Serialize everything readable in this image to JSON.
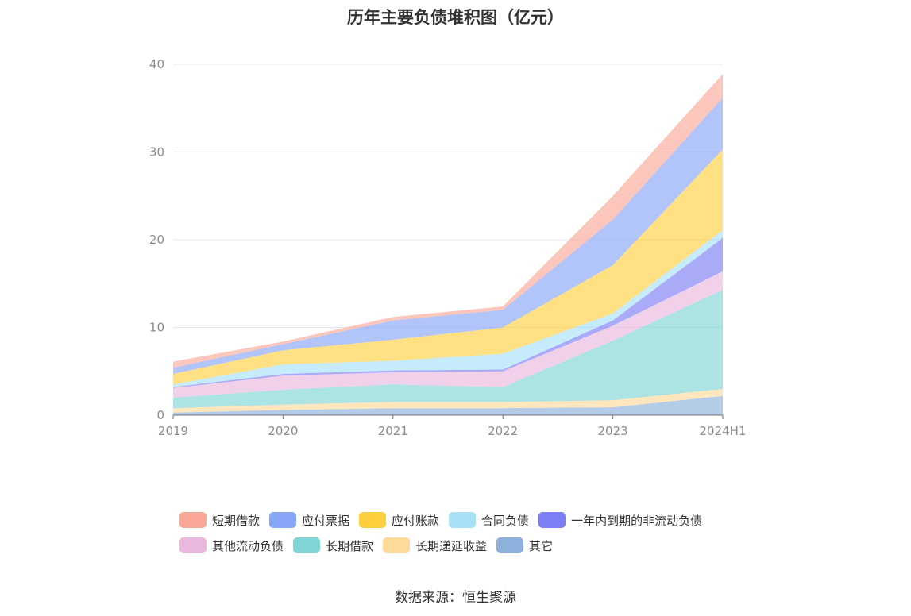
{
  "chart_data": {
    "type": "area",
    "stacked": true,
    "title": "历年主要负债堆积图（亿元）",
    "xlabel": "",
    "ylabel": "",
    "categories": [
      "2019",
      "2020",
      "2021",
      "2022",
      "2023",
      "2024H1"
    ],
    "ylim": [
      0,
      40
    ],
    "yticks": [
      "0",
      "10",
      "20",
      "30",
      "40"
    ],
    "grid": true,
    "legend_position": "bottom",
    "series": [
      {
        "name": "其它",
        "color": "#8eb0dc",
        "values": [
          0.3,
          0.6,
          0.8,
          0.8,
          0.9,
          2.2
        ]
      },
      {
        "name": "长期递延收益",
        "color": "#fdd99a",
        "values": [
          0.5,
          0.6,
          0.7,
          0.7,
          0.8,
          0.8
        ]
      },
      {
        "name": "长期借款",
        "color": "#80d6d4",
        "values": [
          1.2,
          1.7,
          2.0,
          1.7,
          6.8,
          11.3
        ]
      },
      {
        "name": "其他流动负债",
        "color": "#eab8dd",
        "values": [
          1.1,
          1.6,
          1.4,
          1.8,
          1.7,
          2.1
        ]
      },
      {
        "name": "一年内到期的非流动负债",
        "color": "#7b7ef5",
        "values": [
          0.1,
          0.2,
          0.2,
          0.2,
          0.6,
          3.8
        ]
      },
      {
        "name": "合同负债",
        "color": "#a8e0f8",
        "values": [
          0.3,
          1.1,
          1.1,
          1.8,
          0.8,
          0.9
        ]
      },
      {
        "name": "应付账款",
        "color": "#ffcf40",
        "values": [
          1.2,
          1.6,
          2.4,
          3.0,
          5.5,
          9.2
        ]
      },
      {
        "name": "应付票据",
        "color": "#88a6f8",
        "values": [
          0.7,
          0.7,
          2.2,
          2.0,
          5.2,
          5.9
        ]
      },
      {
        "name": "短期借款",
        "color": "#f9a898",
        "values": [
          0.7,
          0.3,
          0.4,
          0.4,
          2.7,
          2.7
        ]
      }
    ]
  },
  "legend": {
    "rows": [
      [
        {
          "label": "短期借款",
          "color": "#f9a898"
        },
        {
          "label": "应付票据",
          "color": "#88a6f8"
        },
        {
          "label": "应付账款",
          "color": "#ffcf40"
        },
        {
          "label": "合同负债",
          "color": "#a8e0f8"
        },
        {
          "label": "一年内到期的非流动负债",
          "color": "#7b7ef5"
        }
      ],
      [
        {
          "label": "其他流动负债",
          "color": "#eab8dd"
        },
        {
          "label": "长期借款",
          "color": "#80d6d4"
        },
        {
          "label": "长期递延收益",
          "color": "#fdd99a"
        },
        {
          "label": "其它",
          "color": "#8eb0dc"
        }
      ]
    ]
  },
  "source": "数据来源：恒生聚源"
}
